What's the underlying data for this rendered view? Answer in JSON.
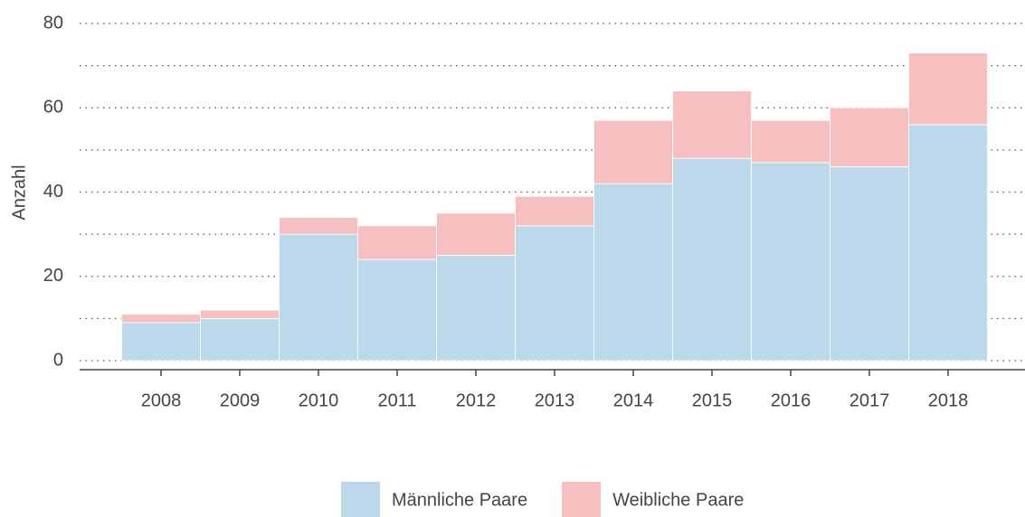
{
  "chart_data": {
    "type": "stacked-bar",
    "y_label": "Anzahl",
    "categories": [
      "2008",
      "2009",
      "2010",
      "2011",
      "2012",
      "2013",
      "2014",
      "2015",
      "2016",
      "2017",
      "2018"
    ],
    "series": [
      {
        "name": "Männliche Paare",
        "color": "#bcd9ec",
        "values": [
          9,
          10,
          30,
          24,
          25,
          32,
          42,
          48,
          47,
          46,
          56
        ]
      },
      {
        "name": "Weibliche Paare",
        "color": "#f7c0c0",
        "values": [
          2,
          2,
          4,
          8,
          10,
          7,
          15,
          16,
          10,
          14,
          17
        ]
      }
    ],
    "ylim": [
      0,
      80
    ],
    "yticks": [
      0,
      20,
      40,
      60,
      80
    ],
    "y_minor_gridlines": [
      10,
      30,
      50,
      70
    ],
    "grid": true,
    "legend": "bottom"
  }
}
